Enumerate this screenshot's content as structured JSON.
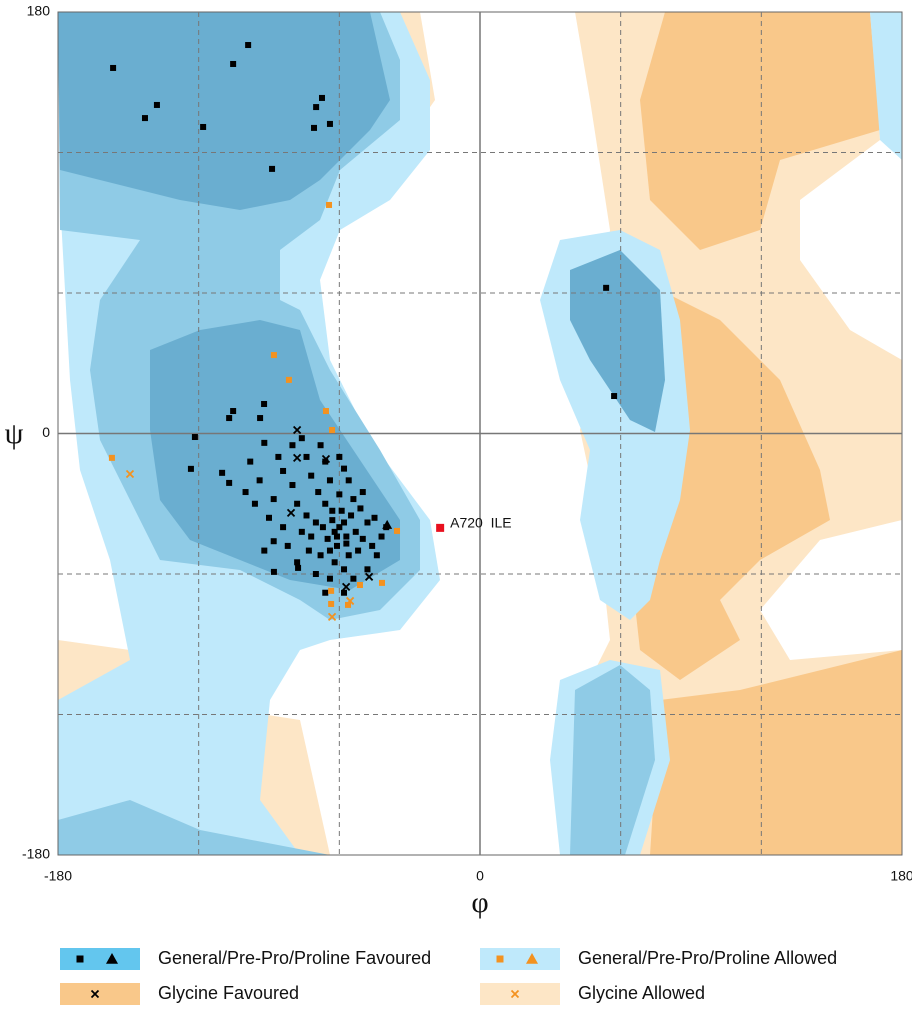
{
  "chart_data": {
    "type": "scatter",
    "xlabel": "φ",
    "ylabel": "ψ",
    "xlim": [
      -180,
      180
    ],
    "ylim": [
      -180,
      180
    ],
    "xticks": [
      -180,
      0,
      180
    ],
    "yticks": [
      -180,
      0,
      180
    ],
    "dashed_grid": [
      -120,
      -60,
      60,
      120
    ],
    "series": [
      {
        "name": "General/Pre-Pro/Proline Favoured",
        "region_color": "#63c6ee",
        "color": "#000000",
        "marker": "square",
        "x": [
          -156.5,
          -105.3,
          -98.9,
          -137.8,
          -142.9,
          -118.1,
          -67.4,
          -69.9,
          -64,
          -70.8,
          -88.7,
          53.8,
          57.2,
          -121.6,
          -123.3,
          -110,
          -107,
          -105.3,
          -107,
          -92.1,
          -93.8,
          -87.9,
          -77.6,
          -60,
          -62,
          -58,
          -65,
          -55,
          -63,
          -57,
          -67,
          -53,
          -61,
          -59,
          -70,
          -50,
          -64,
          -56,
          -72,
          -48,
          -66,
          -54,
          -74,
          -62,
          -52,
          -68,
          -58,
          -46,
          -76,
          -60,
          -69,
          -51,
          -78,
          -64,
          -72,
          -56,
          -80,
          -66,
          -60,
          -74,
          -84,
          -88,
          -90,
          -82,
          -86,
          -92,
          -94,
          -70,
          -64,
          -48,
          -44,
          -42,
          -45,
          -50,
          -58,
          -68,
          -76,
          -80,
          -96,
          -98,
          -84,
          -78,
          -54,
          -66,
          -58,
          -40,
          -88,
          -92,
          -100,
          -73,
          -63,
          -57,
          -61
        ],
        "y": [
          156.1,
          157.8,
          165.9,
          140.3,
          134.7,
          130.9,
          143.3,
          139.4,
          132.2,
          130.5,
          113,
          62.2,
          16,
          -1.5,
          -15.1,
          -16.8,
          -21.1,
          9.6,
          6.6,
          12.6,
          6.6,
          -59.1,
          -57.4,
          -40,
          -42,
          -38,
          -45,
          -35,
          -37,
          -44,
          -40,
          -42,
          -48,
          -33,
          -38,
          -45,
          -50,
          -52,
          -44,
          -38,
          -30,
          -28,
          -35,
          -55,
          -50,
          -52,
          -58,
          -48,
          -42,
          -26,
          -25,
          -32,
          -30,
          -20,
          -18,
          -20,
          -22,
          -12,
          -10,
          -10,
          -16,
          -28,
          -36,
          -48,
          -10,
          -4,
          -20,
          -60,
          -62,
          -58,
          -52,
          -44,
          -36,
          -25,
          -15,
          -5,
          -2,
          -5,
          -30,
          -12,
          -40,
          -55,
          -62,
          -68,
          -68,
          -40,
          -46,
          -50,
          -25,
          -50,
          -33,
          -47,
          -44
        ],
        "triangle_x": [
          -39.6
        ],
        "triangle_y": [
          -39
        ]
      },
      {
        "name": "General/Pre-Pro/Proline Allowed",
        "region_color": "#bfe9fb",
        "color": "#f39220",
        "marker": "square",
        "x": [
          -64.4,
          -87.9,
          -81.5,
          -65.7,
          -63.1,
          -157,
          -35.4,
          -41.8,
          -51.2,
          -63.5,
          -63.5,
          -56.3
        ],
        "y": [
          97.6,
          33.5,
          22.9,
          9.6,
          1.5,
          -10.4,
          -41.6,
          -63.8,
          -64.7,
          -67.2,
          -72.8,
          -73.2
        ],
        "triangle_x": [],
        "triangle_y": []
      },
      {
        "name": "Glycine Favoured",
        "region_color": "#f9c88a",
        "color": "#000000",
        "marker": "cross",
        "x": [
          -78,
          -78,
          -65.7,
          -80.6,
          -47.3,
          -57.1
        ],
        "y": [
          1.5,
          -10.4,
          -10.9,
          -33.9,
          -61.2,
          -65.5
        ]
      },
      {
        "name": "Glycine Allowed",
        "region_color": "#fde6c6",
        "color": "#f39220",
        "marker": "cross",
        "x": [
          -149.3,
          -63.1,
          -55.4
        ],
        "y": [
          -17.3,
          -78.3,
          -71.5
        ]
      }
    ],
    "annotations": [
      {
        "text": "A720  ILE",
        "x": -17,
        "y": -40.3,
        "color": "#e8101e"
      }
    ]
  }
}
